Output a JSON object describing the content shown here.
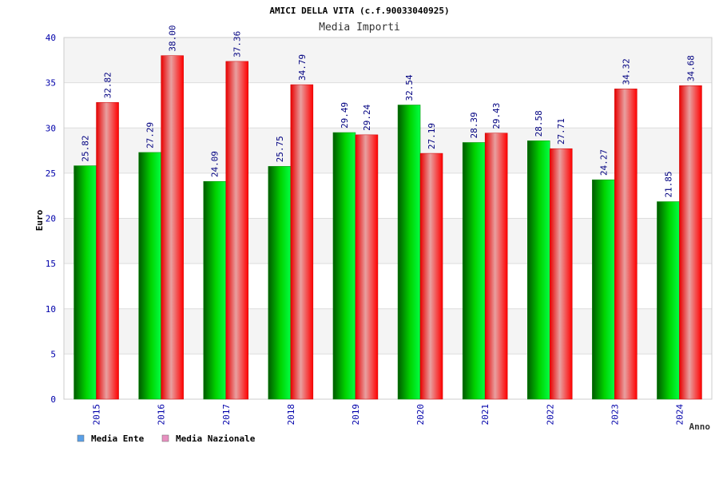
{
  "chart_data": {
    "type": "bar",
    "title": "AMICI DELLA VITA (c.f.90033040925)",
    "subtitle": "Media Importi",
    "xlabel": "Anno",
    "ylabel": "Euro",
    "ylim": [
      0,
      40
    ],
    "ytick_step": 5,
    "grid": true,
    "categories": [
      "2015",
      "2016",
      "2017",
      "2018",
      "2019",
      "2020",
      "2021",
      "2022",
      "2023",
      "2024"
    ],
    "series": [
      {
        "name": "Media Ente",
        "values": [
          25.82,
          27.29,
          24.09,
          25.75,
          29.49,
          32.54,
          28.39,
          28.58,
          24.27,
          21.85
        ],
        "labels": [
          "25.82",
          "27.29",
          "24.09",
          "25.75",
          "29.49",
          "32.54",
          "28.39",
          "28.58",
          "24.27",
          "21.85"
        ],
        "color": "#00c800",
        "legend_color": "#5aa0e8"
      },
      {
        "name": "Media Nazionale",
        "values": [
          32.82,
          38.0,
          37.36,
          34.79,
          29.24,
          27.19,
          29.43,
          27.71,
          34.32,
          34.68
        ],
        "labels": [
          "32.82",
          "38.00",
          "37.36",
          "34.79",
          "29.24",
          "27.19",
          "29.43",
          "27.71",
          "34.32",
          "34.68"
        ],
        "color": "#ff0000",
        "legend_color": "#e890c0"
      }
    ],
    "legend_position": "bottom-left",
    "colors": {
      "axis_text": "#0000aa",
      "value_label": "#000080",
      "title_text": "#000000",
      "subtitle_text": "#333333",
      "band_light": "#f4f4f4",
      "band_white": "#ffffff",
      "grid_line": "#dddddd"
    }
  }
}
